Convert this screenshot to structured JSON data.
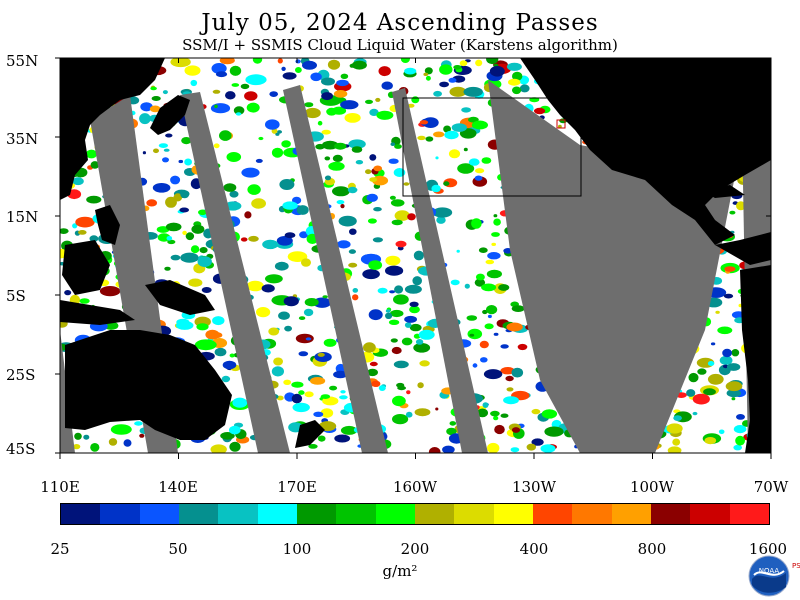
{
  "title": "July 05, 2024  Ascending Passes",
  "subtitle": "SSM/I + SSMIS Cloud Liquid Water (Karstens algorithm)",
  "latitude_labels": [
    "55N",
    "35N",
    "15N",
    "5S",
    "25S",
    "45S"
  ],
  "longitude_labels": [
    "110E",
    "140E",
    "170E",
    "160W",
    "130W",
    "100W",
    "70W"
  ],
  "colorbar": {
    "tick_labels": [
      "25",
      "50",
      "100",
      "200",
      "400",
      "800",
      "1600"
    ],
    "units": "g/m²",
    "colors": [
      "#00137a",
      "#0033c8",
      "#0a55ff",
      "#05908f",
      "#08c2c2",
      "#00ffff",
      "#009900",
      "#00c400",
      "#00ff00",
      "#b0b000",
      "#dcdc00",
      "#ffff00",
      "#ff4500",
      "#ff7800",
      "#ffa000",
      "#8b0000",
      "#cc0000",
      "#ff1a1a"
    ]
  },
  "map": {
    "land_color": "#000000",
    "no_data_color": "#6e6e6e",
    "background_color": "#ffffff"
  },
  "logo": {
    "name": "noaa-logo",
    "side_text": "PSL"
  }
}
